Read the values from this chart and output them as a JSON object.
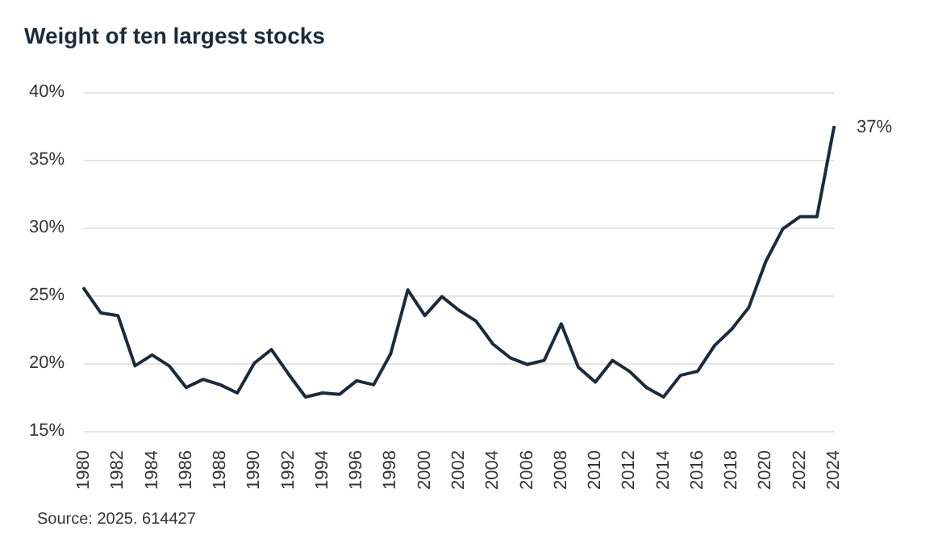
{
  "chart_data": {
    "type": "line",
    "title": "Weight of ten largest stocks",
    "categories": [
      "1980",
      null,
      "1982",
      null,
      "1984",
      null,
      "1986",
      null,
      "1988",
      null,
      "1990",
      null,
      "1992",
      null,
      "1994",
      null,
      "1996",
      null,
      "1998",
      null,
      "2000",
      null,
      "2002",
      null,
      "2004",
      null,
      "2006",
      null,
      "2008",
      null,
      "2010",
      null,
      "2012",
      null,
      "2014",
      null,
      "2016",
      null,
      "2018",
      null,
      "2020",
      null,
      "2022",
      null,
      "2024"
    ],
    "series": [
      {
        "color": "#1c2b3a",
        "values": [
          25.5,
          23.7,
          23.5,
          19.8,
          20.6,
          19.8,
          18.2,
          18.8,
          18.4,
          17.8,
          20.0,
          21.0,
          19.2,
          17.5,
          17.8,
          17.7,
          18.7,
          18.4,
          20.7,
          25.4,
          23.5,
          24.9,
          23.9,
          23.1,
          21.4,
          20.4,
          19.9,
          20.2,
          22.9,
          19.7,
          18.6,
          20.2,
          19.4,
          18.2,
          17.5,
          19.1,
          19.4,
          21.3,
          22.5,
          24.1,
          27.5,
          29.9,
          30.8,
          30.8,
          37.4
        ],
        "value_labels": [
          null,
          null,
          null,
          null,
          null,
          null,
          null,
          null,
          null,
          null,
          null,
          null,
          null,
          null,
          null,
          null,
          null,
          null,
          null,
          null,
          null,
          null,
          null,
          null,
          null,
          null,
          null,
          null,
          null,
          null,
          null,
          null,
          null,
          null,
          null,
          null,
          null,
          null,
          null,
          null,
          null,
          null,
          null,
          null,
          "37%"
        ]
      }
    ],
    "ylim": [
      15,
      40
    ],
    "yticks": [
      {
        "value": 15,
        "label": "15%"
      },
      {
        "value": 20,
        "label": "20%"
      },
      {
        "value": 25,
        "label": "25%"
      },
      {
        "value": 30,
        "label": "30%"
      },
      {
        "value": 35,
        "label": "35%"
      },
      {
        "value": 40,
        "label": "40%"
      }
    ],
    "grid": "y",
    "marker": "none",
    "line_style": "solid",
    "annotations": [
      "Source: 2025. 614427"
    ]
  }
}
